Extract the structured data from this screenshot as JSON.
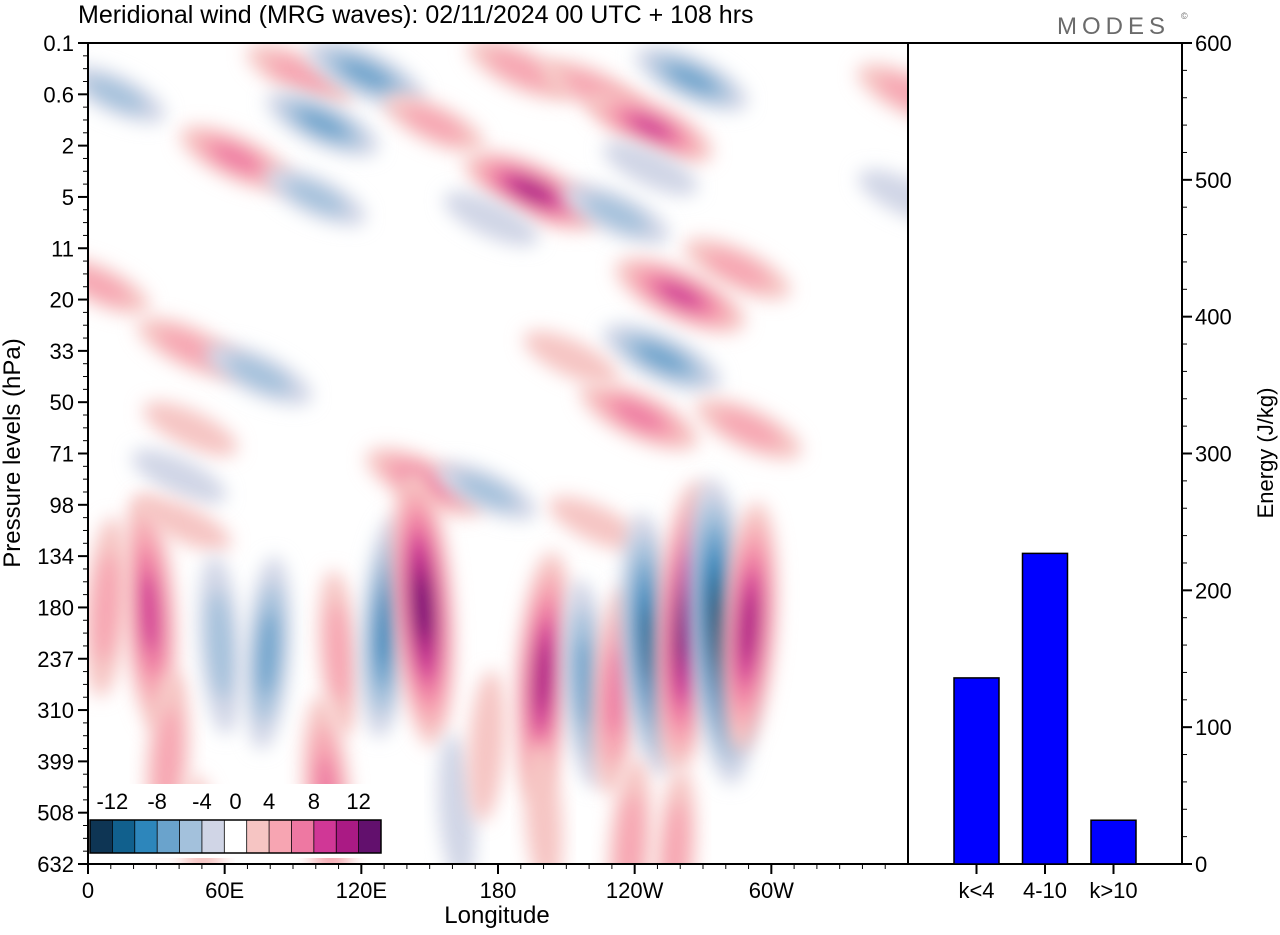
{
  "title": "Meridional wind (MRG waves):  02/11/2024  00 UTC  + 108 hrs",
  "brand": "MODES",
  "brand_mark": "©",
  "colors": {
    "neg": [
      "#0e3554",
      "#11608d",
      "#2d86bb",
      "#6aa3cc",
      "#a3c1dc",
      "#d0d5e6"
    ],
    "pos": [
      "#f6c5c3",
      "#f7a5b2",
      "#ee78a2",
      "#d03796",
      "#aa1a84",
      "#62106d"
    ],
    "bar": "#0000ff"
  },
  "chart_data": [
    {
      "type": "heatmap",
      "title": "Meridional wind (MRG waves):  02/11/2024  00 UTC  + 108 hrs",
      "xlabel": "Longitude",
      "ylabel": "Pressure levels (hPa)",
      "x_ticks": [
        "0",
        "60E",
        "120E",
        "180",
        "120W",
        "60W"
      ],
      "y_ticks": [
        "0.1",
        "0.6",
        "2",
        "5",
        "11",
        "20",
        "33",
        "50",
        "71",
        "98",
        "134",
        "180",
        "237",
        "310",
        "399",
        "508",
        "632"
      ],
      "colorbar": {
        "ticks": [
          "-12",
          "-8",
          "-4",
          "0",
          "4",
          "8",
          "12"
        ],
        "bins": [
          -14,
          -12,
          -10,
          -8,
          -6,
          -4,
          -2,
          2,
          4,
          6,
          8,
          10,
          12,
          14
        ]
      },
      "features": [
        {
          "lon": 361,
          "lev": 0.6,
          "v": 5
        },
        {
          "lon": 359,
          "lev": 5,
          "v": -3
        },
        {
          "lon": 12,
          "lev": 0.6,
          "v": -4
        },
        {
          "lon": 93,
          "lev": 0.3,
          "v": 5
        },
        {
          "lon": 122,
          "lev": 0.3,
          "v": -7
        },
        {
          "lon": 103,
          "lev": 1.2,
          "v": -6
        },
        {
          "lon": 65,
          "lev": 2.5,
          "v": 6
        },
        {
          "lon": 100,
          "lev": 5,
          "v": -4
        },
        {
          "lon": 152,
          "lev": 1.2,
          "v": 4
        },
        {
          "lon": 190,
          "lev": 0.25,
          "v": 5
        },
        {
          "lon": 195,
          "lev": 4.5,
          "v": 10
        },
        {
          "lon": 177,
          "lev": 7,
          "v": -3
        },
        {
          "lon": 265,
          "lev": 0.35,
          "v": -6
        },
        {
          "lon": 222,
          "lev": 0.5,
          "v": 4
        },
        {
          "lon": 247,
          "lev": 1.3,
          "v": 8
        },
        {
          "lon": 232,
          "lev": 6.5,
          "v": -5
        },
        {
          "lon": 247,
          "lev": 3,
          "v": -3
        },
        {
          "lon": 285,
          "lev": 14,
          "v": 5
        },
        {
          "lon": 260,
          "lev": 19,
          "v": 9
        },
        {
          "lon": 252,
          "lev": 35,
          "v": -7
        },
        {
          "lon": 242,
          "lev": 55,
          "v": 7
        },
        {
          "lon": 212,
          "lev": 35,
          "v": 3
        },
        {
          "lon": 290,
          "lev": 60,
          "v": 5
        },
        {
          "lon": 5,
          "lev": 17,
          "v": 4
        },
        {
          "lon": 45,
          "lev": 32,
          "v": 5
        },
        {
          "lon": 75,
          "lev": 40,
          "v": -5
        },
        {
          "lon": 45,
          "lev": 60,
          "v": 3
        },
        {
          "lon": 40,
          "lev": 82,
          "v": -3
        },
        {
          "lon": 148,
          "lev": 85,
          "v": 7
        },
        {
          "lon": 175,
          "lev": 90,
          "v": -4
        },
        {
          "lon": 42,
          "lev": 110,
          "v": 3
        },
        {
          "lon": 223,
          "lev": 110,
          "v": 3
        },
        {
          "lon": 27,
          "lev": 185,
          "v": 9
        },
        {
          "lon": 8,
          "lev": 180,
          "v": 5
        },
        {
          "lon": 58,
          "lev": 220,
          "v": -5
        },
        {
          "lon": 79,
          "lev": 230,
          "v": -6
        },
        {
          "lon": 110,
          "lev": 230,
          "v": 4
        },
        {
          "lon": 131,
          "lev": 200,
          "v": -8
        },
        {
          "lon": 147,
          "lev": 180,
          "v": 12
        },
        {
          "lon": 200,
          "lev": 260,
          "v": 10
        },
        {
          "lon": 219,
          "lev": 270,
          "v": -7
        },
        {
          "lon": 232,
          "lev": 280,
          "v": 7
        },
        {
          "lon": 247,
          "lev": 220,
          "v": -11
        },
        {
          "lon": 263,
          "lev": 200,
          "v": 13
        },
        {
          "lon": 278,
          "lev": 205,
          "v": -14
        },
        {
          "lon": 290,
          "lev": 200,
          "v": 10
        },
        {
          "lon": 105,
          "lev": 480,
          "v": 7
        },
        {
          "lon": 35,
          "lev": 400,
          "v": 5
        },
        {
          "lon": 50,
          "lev": 600,
          "v": 3
        },
        {
          "lon": 258,
          "lev": 600,
          "v": 4
        },
        {
          "lon": 162,
          "lev": 500,
          "v": -3
        },
        {
          "lon": 238,
          "lev": 590,
          "v": 5
        },
        {
          "lon": 200,
          "lev": 520,
          "v": 3
        },
        {
          "lon": 175,
          "lev": 370,
          "v": 3
        }
      ]
    },
    {
      "type": "bar",
      "categories": [
        "k<4",
        "4-10",
        "k>10"
      ],
      "values": [
        136,
        227,
        32
      ],
      "ylabel": "Energy (J/kg)",
      "ylim": [
        0,
        600
      ],
      "y_ticks": [
        0,
        100,
        200,
        300,
        400,
        500,
        600
      ]
    }
  ]
}
